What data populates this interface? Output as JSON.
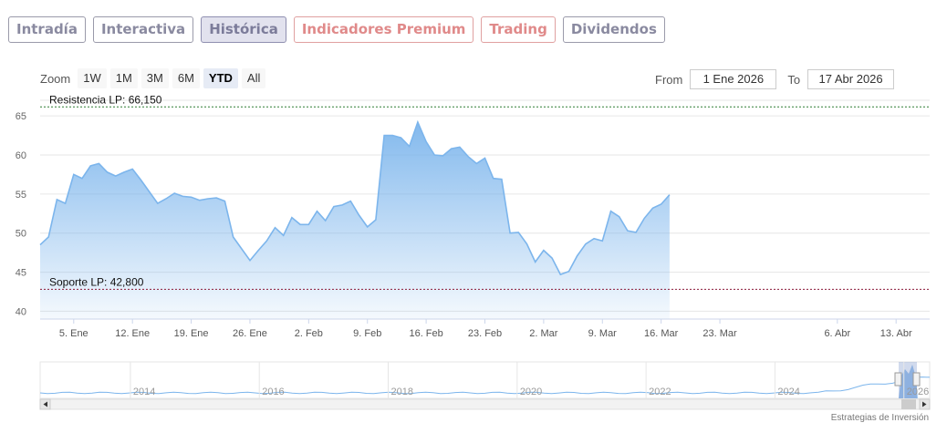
{
  "tabs": [
    {
      "label": "Intradía",
      "style": "normal"
    },
    {
      "label": "Interactiva",
      "style": "normal"
    },
    {
      "label": "Histórica",
      "style": "active"
    },
    {
      "label": "Indicadores Premium",
      "style": "premium"
    },
    {
      "label": "Trading",
      "style": "premium"
    },
    {
      "label": "Dividendos",
      "style": "normal"
    }
  ],
  "zoom": {
    "label": "Zoom",
    "buttons": [
      "1W",
      "1M",
      "3M",
      "6M",
      "YTD",
      "All"
    ],
    "selected": "YTD"
  },
  "range": {
    "from_label": "From",
    "from_value": "1 Ene 2026",
    "to_label": "To",
    "to_value": "17 Abr 2026"
  },
  "credit": "Estrategias de Inversión",
  "colors": {
    "line": "#7cb5ec",
    "area_top": "#7cb5ec",
    "resistance": "#2e7d32",
    "support": "#8b1a3a"
  },
  "chart_data": {
    "type": "area",
    "ylim": [
      39,
      67
    ],
    "yticks": [
      40,
      45,
      50,
      55,
      60,
      65
    ],
    "xlim": [
      "2026-01-01",
      "2026-04-17"
    ],
    "xticks": [
      {
        "date": "2026-01-05",
        "label": "5. Ene"
      },
      {
        "date": "2026-01-12",
        "label": "12. Ene"
      },
      {
        "date": "2026-01-19",
        "label": "19. Ene"
      },
      {
        "date": "2026-01-26",
        "label": "26. Ene"
      },
      {
        "date": "2026-02-02",
        "label": "2. Feb"
      },
      {
        "date": "2026-02-09",
        "label": "9. Feb"
      },
      {
        "date": "2026-02-16",
        "label": "16. Feb"
      },
      {
        "date": "2026-02-23",
        "label": "23. Feb"
      },
      {
        "date": "2026-03-02",
        "label": "2. Mar"
      },
      {
        "date": "2026-03-09",
        "label": "9. Mar"
      },
      {
        "date": "2026-03-16",
        "label": "16. Mar"
      },
      {
        "date": "2026-03-23",
        "label": "23. Mar"
      },
      {
        "date": "2026-04-06",
        "label": "6. Abr"
      },
      {
        "date": "2026-04-13",
        "label": "13. Abr"
      }
    ],
    "grid": true,
    "plotlines": [
      {
        "value": 66.15,
        "label": "Resistencia LP: 66,150",
        "kind": "resistance"
      },
      {
        "value": 42.8,
        "label": "Soporte LP: 42,800",
        "kind": "support"
      }
    ],
    "series": [
      {
        "points": [
          [
            "2026-01-01",
            48.5
          ],
          [
            "2026-01-02",
            49.5
          ],
          [
            "2026-01-03",
            54.3
          ],
          [
            "2026-01-04",
            53.8
          ],
          [
            "2026-01-05",
            57.5
          ],
          [
            "2026-01-06",
            57.0
          ],
          [
            "2026-01-07",
            58.6
          ],
          [
            "2026-01-08",
            58.9
          ],
          [
            "2026-01-09",
            57.8
          ],
          [
            "2026-01-10",
            57.3
          ],
          [
            "2026-01-11",
            57.8
          ],
          [
            "2026-01-12",
            58.2
          ],
          [
            "2026-01-13",
            56.8
          ],
          [
            "2026-01-15",
            53.8
          ],
          [
            "2026-01-16",
            54.4
          ],
          [
            "2026-01-17",
            55.1
          ],
          [
            "2026-01-18",
            54.7
          ],
          [
            "2026-01-19",
            54.6
          ],
          [
            "2026-01-20",
            54.2
          ],
          [
            "2026-01-21",
            54.4
          ],
          [
            "2026-01-22",
            54.5
          ],
          [
            "2026-01-23",
            54.1
          ],
          [
            "2026-01-24",
            49.5
          ],
          [
            "2026-01-26",
            46.5
          ],
          [
            "2026-01-27",
            47.8
          ],
          [
            "2026-01-28",
            49.0
          ],
          [
            "2026-01-29",
            50.7
          ],
          [
            "2026-01-30",
            49.7
          ],
          [
            "2026-01-31",
            52.0
          ],
          [
            "2026-02-01",
            51.1
          ],
          [
            "2026-02-02",
            51.1
          ],
          [
            "2026-02-03",
            52.8
          ],
          [
            "2026-02-04",
            51.6
          ],
          [
            "2026-02-05",
            53.4
          ],
          [
            "2026-02-06",
            53.6
          ],
          [
            "2026-02-07",
            54.1
          ],
          [
            "2026-02-08",
            52.3
          ],
          [
            "2026-02-09",
            50.8
          ],
          [
            "2026-02-10",
            51.7
          ],
          [
            "2026-02-11",
            62.5
          ],
          [
            "2026-02-12",
            62.5
          ],
          [
            "2026-02-13",
            62.2
          ],
          [
            "2026-02-14",
            61.1
          ],
          [
            "2026-02-15",
            64.2
          ],
          [
            "2026-02-16",
            61.7
          ],
          [
            "2026-02-17",
            60.0
          ],
          [
            "2026-02-18",
            59.9
          ],
          [
            "2026-02-19",
            60.8
          ],
          [
            "2026-02-20",
            61.0
          ],
          [
            "2026-02-21",
            59.8
          ],
          [
            "2026-02-22",
            58.9
          ],
          [
            "2026-02-23",
            59.6
          ],
          [
            "2026-02-24",
            57.0
          ],
          [
            "2026-02-25",
            56.9
          ],
          [
            "2026-02-26",
            50.0
          ],
          [
            "2026-02-27",
            50.1
          ],
          [
            "2026-02-28",
            48.6
          ],
          [
            "2026-03-01",
            46.3
          ],
          [
            "2026-03-02",
            47.8
          ],
          [
            "2026-03-03",
            46.8
          ],
          [
            "2026-03-04",
            44.7
          ],
          [
            "2026-03-05",
            45.1
          ],
          [
            "2026-03-06",
            47.1
          ],
          [
            "2026-03-07",
            48.6
          ],
          [
            "2026-03-08",
            49.3
          ],
          [
            "2026-03-09",
            49.0
          ],
          [
            "2026-03-10",
            52.8
          ],
          [
            "2026-03-11",
            52.1
          ],
          [
            "2026-03-12",
            50.3
          ],
          [
            "2026-03-13",
            50.1
          ],
          [
            "2026-03-14",
            51.9
          ],
          [
            "2026-03-15",
            53.2
          ],
          [
            "2026-03-16",
            53.7
          ],
          [
            "2026-03-17",
            54.9
          ]
        ]
      }
    ],
    "navigator": {
      "labels": [
        "2014",
        "2016",
        "2018",
        "2020",
        "2022",
        "2024",
        "2026"
      ]
    }
  }
}
